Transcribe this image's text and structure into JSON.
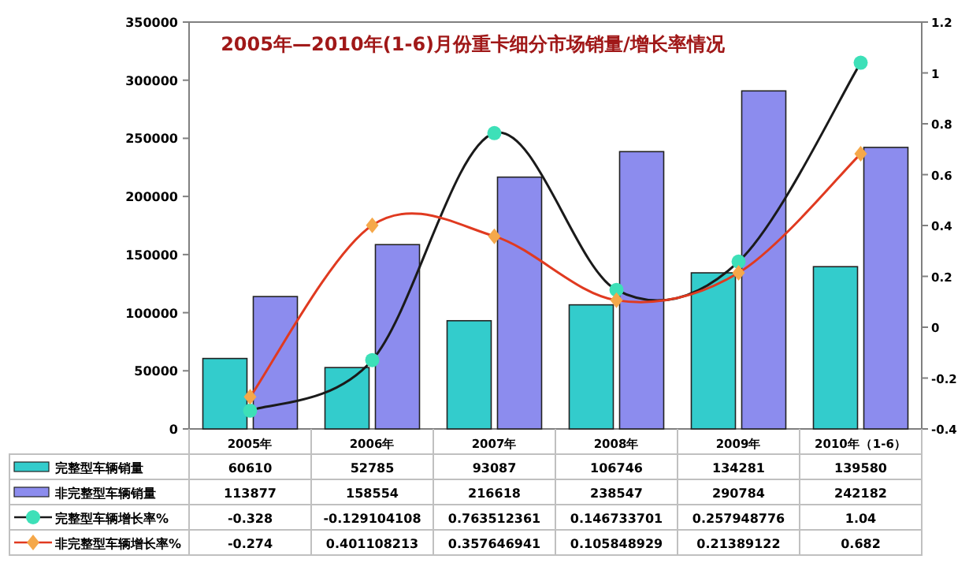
{
  "chart_data": {
    "type": "bar",
    "title": "2005年—2010年(1-6)月份重卡细分市场销量/增长率情况",
    "categories": [
      "2005年",
      "2006年",
      "2007年",
      "2008年",
      "2009年",
      "2010年（1-6）"
    ],
    "series": [
      {
        "name": "完整型车辆销量",
        "color": "#33cccc",
        "values": [
          60610,
          52785,
          93087,
          106746,
          134281,
          139580
        ]
      },
      {
        "name": "非完整型车辆销量",
        "color": "#8c8cee",
        "values": [
          113877,
          158554,
          216618,
          238547,
          290784,
          242182
        ]
      },
      {
        "name": "完整型车辆增长率%",
        "type": "line",
        "axis": "y2",
        "marker": "circle",
        "color": "#1a1a1a",
        "values": [
          -0.328,
          -0.129104108,
          0.763512361,
          0.146733701,
          0.257948776,
          1.04
        ]
      },
      {
        "name": "非完整型车辆增长率%",
        "type": "line",
        "axis": "y2",
        "marker": "diamond",
        "color": "#e03a20",
        "values": [
          -0.274,
          0.401108213,
          0.357646941,
          0.105848929,
          0.21389122,
          0.682
        ]
      }
    ],
    "ylim": [
      0,
      350000
    ],
    "yticks": [
      0,
      50000,
      100000,
      150000,
      200000,
      250000,
      300000,
      350000
    ],
    "y2lim": [
      -0.4,
      1.2
    ],
    "y2ticks": [
      -0.4,
      -0.2,
      0,
      0.2,
      0.4,
      0.6,
      0.8,
      1,
      1.2
    ],
    "data_labels": true,
    "legend": "bottom",
    "grid": false
  }
}
